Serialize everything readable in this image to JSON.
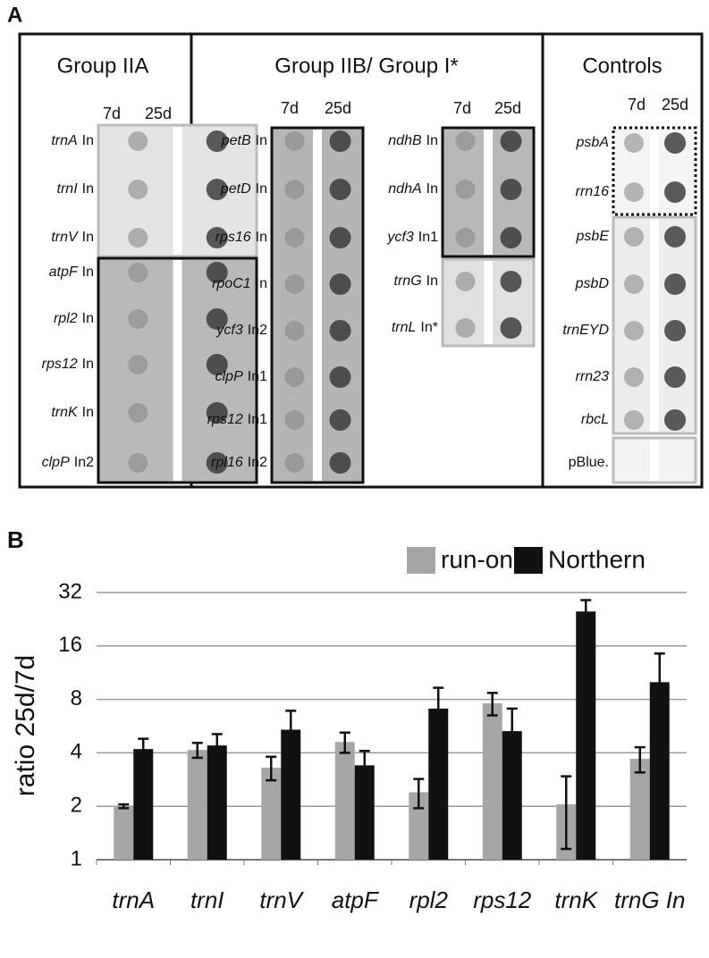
{
  "panel_a": {
    "label": "A",
    "groups": [
      {
        "title": "Group IIA",
        "blocks": [
          {
            "columns": [
              "7d",
              "25d"
            ],
            "rows": [
              {
                "gene": "trnA",
                "intron": "In"
              },
              {
                "gene": "trnI",
                "intron": "In"
              },
              {
                "gene": "trnV",
                "intron": "In"
              }
            ]
          },
          {
            "rows": [
              {
                "gene": "atpF",
                "intron": "In"
              },
              {
                "gene": "rpl2",
                "intron": "In"
              },
              {
                "gene": "rps12",
                "intron": "In"
              },
              {
                "gene": "trnK",
                "intron": "In"
              },
              {
                "gene": "clpP",
                "intron": "In2"
              }
            ]
          }
        ]
      },
      {
        "title": "Group IIB/ Group I*",
        "blocks": [
          {
            "columns": [
              "7d",
              "25d"
            ],
            "rows": [
              {
                "gene": "petB",
                "intron": "In"
              },
              {
                "gene": "petD",
                "intron": "In"
              },
              {
                "gene": "rps16",
                "intron": "In"
              },
              {
                "gene": "rpoC1",
                "intron": "In"
              },
              {
                "gene": "ycf3",
                "intron": "In2"
              },
              {
                "gene": "clpP",
                "intron": "In1"
              },
              {
                "gene": "rps12",
                "intron": "In1"
              },
              {
                "gene": "rpl16",
                "intron": "In2"
              }
            ]
          },
          {
            "columns": [
              "7d",
              "25d"
            ],
            "rows": [
              {
                "gene": "ndhB",
                "intron": "In"
              },
              {
                "gene": "ndhA",
                "intron": "In"
              },
              {
                "gene": "ycf3",
                "intron": "In1"
              }
            ]
          },
          {
            "rows": [
              {
                "gene": "trnG",
                "intron": "In"
              },
              {
                "gene": "trnL",
                "intron": "In*"
              }
            ]
          }
        ]
      },
      {
        "title": "Controls",
        "blocks": [
          {
            "columns": [
              "7d",
              "25d"
            ],
            "rows": [
              {
                "gene": "psbA"
              },
              {
                "gene": "rrn16"
              }
            ]
          },
          {
            "rows": [
              {
                "gene": "psbE"
              },
              {
                "gene": "psbD"
              },
              {
                "gene": "trnEYD"
              },
              {
                "gene": "rrn23"
              },
              {
                "gene": "rbcL"
              }
            ]
          },
          {
            "rows": [
              {
                "label": "pBlue."
              }
            ]
          }
        ]
      }
    ]
  },
  "chart_data": {
    "type": "bar",
    "label": "B",
    "y_label": "ratio 25d/7d",
    "categories": [
      "trnA",
      "trnI",
      "trnV",
      "atpF",
      "rpl2",
      "rps12",
      "trnK",
      "trnG In"
    ],
    "series": [
      {
        "name": "run-on",
        "color": "#a6a6a6",
        "values": [
          2.0,
          4.15,
          3.3,
          4.6,
          2.4,
          7.6,
          2.05,
          3.7
        ],
        "errors": [
          0.05,
          0.4,
          0.5,
          0.6,
          0.45,
          1.1,
          0.9,
          0.6
        ]
      },
      {
        "name": "Northern",
        "color": "#111111",
        "values": [
          4.2,
          4.4,
          5.4,
          3.4,
          7.1,
          5.3,
          25,
          10
        ],
        "errors": [
          0.6,
          0.7,
          1.5,
          0.7,
          2.2,
          1.8,
          4,
          4.5
        ]
      }
    ],
    "log_scale": true,
    "ylim": [
      1,
      32
    ],
    "yticks": [
      1,
      2,
      4,
      8,
      16,
      32
    ],
    "grid": true,
    "legend": "top-right"
  }
}
